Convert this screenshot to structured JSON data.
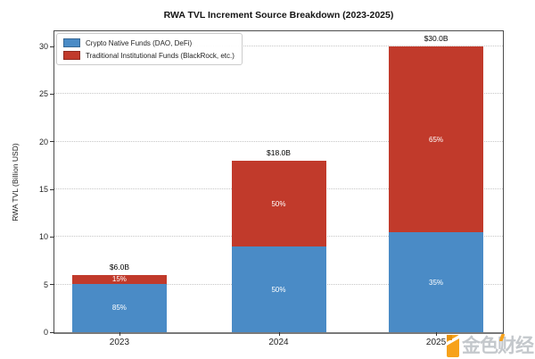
{
  "chart_data": {
    "type": "bar",
    "stacked": true,
    "title": "RWA TVL Increment Source Breakdown (2023-2025)",
    "xlabel": "",
    "ylabel": "RWA TVL (Billion USD)",
    "categories": [
      "2023",
      "2024",
      "2025"
    ],
    "series": [
      {
        "name": "Crypto Native Funds (DAO, DeFi)",
        "color": "#4a8bc6",
        "values": [
          5.1,
          9.0,
          10.5
        ],
        "percent_labels": [
          "85%",
          "50%",
          "35%"
        ]
      },
      {
        "name": "Traditional Institutional Funds (BlackRock, etc.)",
        "color": "#c13a2b",
        "values": [
          0.9,
          9.0,
          19.5
        ],
        "percent_labels": [
          "15%",
          "50%",
          "65%"
        ]
      }
    ],
    "totals": [
      "$6.0B",
      "$18.0B",
      "$30.0B"
    ],
    "y_ticks": [
      0,
      5,
      10,
      15,
      20,
      25,
      30
    ],
    "ylim": [
      0,
      31.6
    ],
    "grid": "horizontal dotted",
    "legend_position": "upper left"
  },
  "watermark": {
    "text": "金色财经",
    "icon_color": "#f7a21b",
    "text_color": "#c4c8cc"
  }
}
